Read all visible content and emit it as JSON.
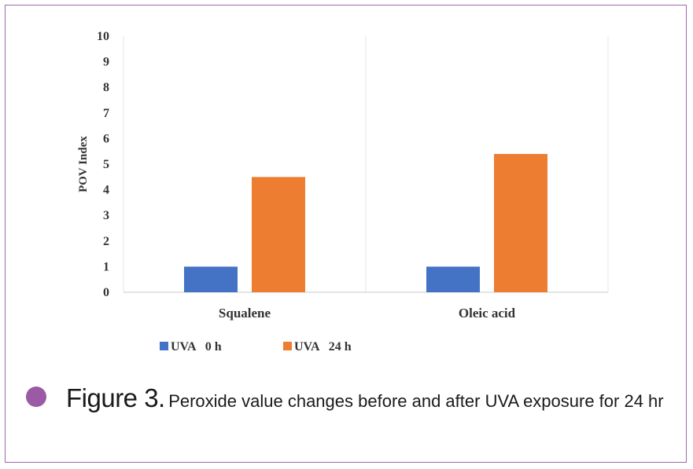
{
  "chart_data": {
    "type": "bar",
    "categories": [
      "Squalene",
      "Oleic acid"
    ],
    "series": [
      {
        "name": "UVA   0 h",
        "values": [
          1.0,
          1.0
        ],
        "color": "#4472c4"
      },
      {
        "name": "UVA   24 h",
        "values": [
          4.5,
          5.4
        ],
        "color": "#ed7d31"
      }
    ],
    "ylabel": "POV Index",
    "ylim": [
      0,
      10
    ],
    "yticks": [
      0,
      1,
      2,
      3,
      4,
      5,
      6,
      7,
      8,
      9,
      10
    ],
    "grid": false,
    "legend": "bottom"
  },
  "caption": {
    "figure_label": "Figure 3.",
    "text": "Peroxide value changes before and after UVA exposure for 24 hr",
    "bullet_color": "#9a5aa6"
  }
}
